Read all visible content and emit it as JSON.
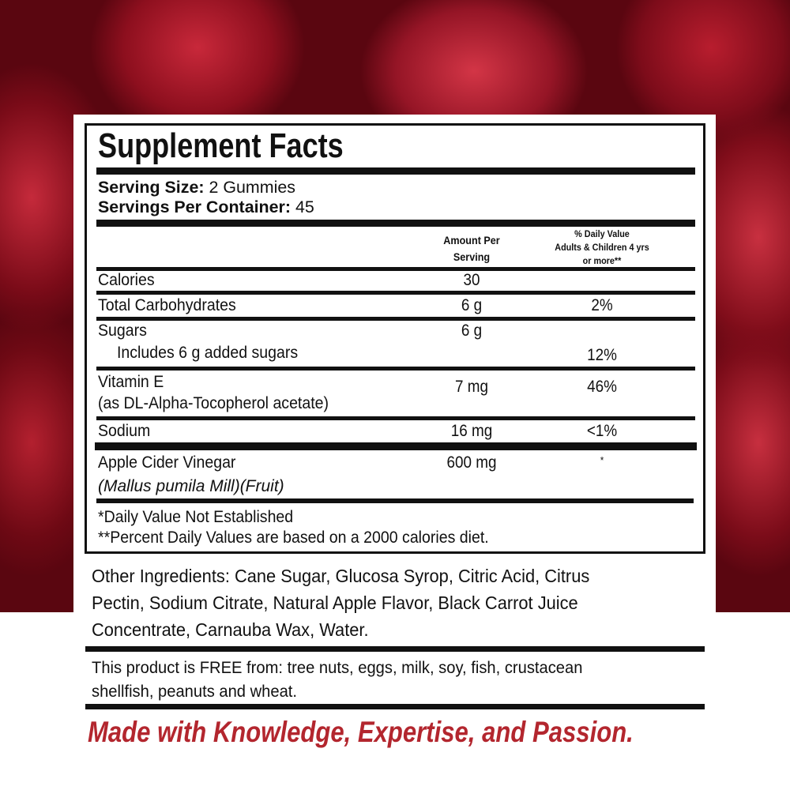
{
  "title": "Supplement Facts",
  "serving_size": {
    "label": "Serving Size:",
    "value": "2 Gummies"
  },
  "servings_per_container": {
    "label": "Servings Per Container:",
    "value": "45"
  },
  "columns": {
    "amount": [
      "Amount Per",
      "Serving"
    ],
    "dv": [
      "% Daily Value",
      "Adults & Children 4 yrs",
      "or more**"
    ]
  },
  "rows": [
    {
      "name": "Calories",
      "amount": "30",
      "dv": ""
    },
    {
      "name": "Total Carbohydrates",
      "amount": "6 g",
      "dv": "2%"
    },
    {
      "name": "Sugars",
      "amount": "6 g",
      "dv": ""
    },
    {
      "name": "Includes 6 g added sugars",
      "amount": "",
      "dv": "12%"
    },
    {
      "name": "Vitamin E",
      "sub": "(as DL-Alpha-Tocopherol acetate)",
      "amount": "7 mg",
      "dv": "46%"
    },
    {
      "name": "Sodium",
      "amount": "16 mg",
      "dv": "<1%"
    },
    {
      "name": "Apple Cider Vinegar",
      "sub": "(Mallus pumila Mill)(Fruit)",
      "amount": "600 mg",
      "dv": "*"
    }
  ],
  "footnotes": [
    "*Daily Value Not Established",
    "**Percent Daily Values are based on a 2000 calories diet."
  ],
  "other_ingredients": [
    "Other Ingredients: Cane Sugar, Glucosa Syrop, Citric Acid, Citrus",
    "Pectin, Sodium Citrate, Natural Apple Flavor, Black Carrot Juice",
    "Concentrate, Carnauba Wax, Water."
  ],
  "allergen_free": [
    "This product is FREE from: tree nuts, eggs, milk, soy, fish, crustacean",
    "shellfish, peanuts and wheat."
  ],
  "tagline": "Made with Knowledge, Expertise, and Passion.",
  "colors": {
    "tagline": "#b3262e",
    "background": "#8d0f1e"
  }
}
